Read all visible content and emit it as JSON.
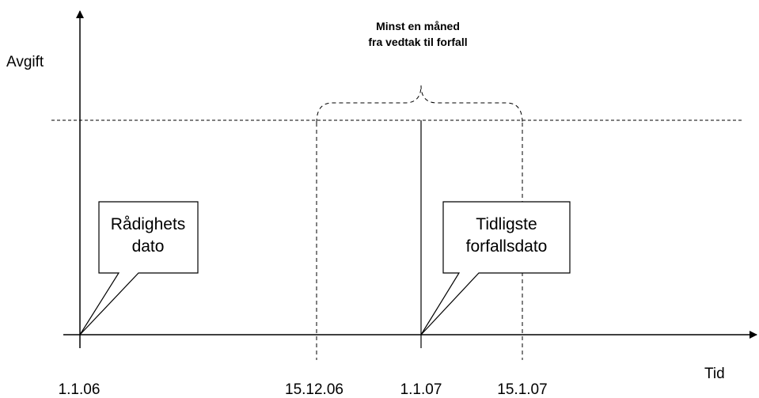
{
  "axes": {
    "y_label": "Avgift",
    "x_label": "Tid"
  },
  "annotation": {
    "lines": [
      "Minst en måned",
      "fra vedtak til forfall"
    ]
  },
  "callouts": [
    {
      "lines": [
        "Rådighets",
        "dato"
      ]
    },
    {
      "lines": [
        "Tidligste",
        "forfallsdato"
      ]
    }
  ],
  "dates": [
    "1.1.06",
    "15.12.06",
    "1.1.07",
    "15.1.07"
  ]
}
